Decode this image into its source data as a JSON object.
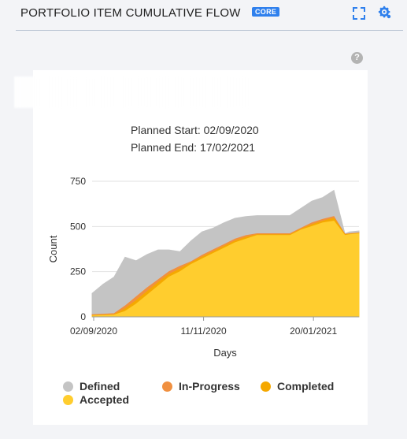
{
  "header": {
    "title": "PORTFOLIO ITEM CUMULATIVE FLOW",
    "badge": "CORE"
  },
  "subtitle": {
    "planned_start": "Planned Start: 02/09/2020",
    "planned_end": "Planned End: 17/02/2021"
  },
  "colors": {
    "accent": "#2f80ed",
    "defined": "#c4c4c4",
    "in_progress": "#f09040",
    "completed": "#f5a800",
    "accepted": "#ffcd2e"
  },
  "chart_data": {
    "type": "area",
    "xlabel": "Days",
    "ylabel": "Count",
    "ylim": [
      0,
      750
    ],
    "yticks": [
      "0",
      "250",
      "500",
      "750"
    ],
    "xtick_labels": [
      "02/09/2020",
      "11/11/2020",
      "20/01/2021"
    ],
    "xlim": [
      "2020-09-01",
      "2021-02-18"
    ],
    "x": [
      "2020-09-01",
      "2020-09-08",
      "2020-09-15",
      "2020-09-22",
      "2020-09-29",
      "2020-10-06",
      "2020-10-13",
      "2020-10-20",
      "2020-10-27",
      "2020-11-03",
      "2020-11-10",
      "2020-11-17",
      "2020-11-24",
      "2020-12-01",
      "2020-12-08",
      "2020-12-15",
      "2020-12-22",
      "2020-12-29",
      "2021-01-05",
      "2021-01-12",
      "2021-01-19",
      "2021-01-26",
      "2021-02-02",
      "2021-02-09",
      "2021-02-12",
      "2021-02-18"
    ],
    "series": [
      {
        "name": "Accepted",
        "color": "#ffcd2e",
        "values": [
          5,
          8,
          10,
          30,
          70,
          120,
          170,
          220,
          250,
          290,
          320,
          350,
          380,
          410,
          430,
          450,
          450,
          450,
          450,
          480,
          500,
          520,
          530,
          450,
          455,
          460
        ]
      },
      {
        "name": "Completed",
        "color": "#f5a800",
        "values": [
          8,
          10,
          12,
          45,
          90,
          140,
          190,
          235,
          265,
          300,
          330,
          360,
          390,
          420,
          440,
          455,
          455,
          455,
          455,
          485,
          510,
          530,
          545,
          455,
          458,
          462
        ]
      },
      {
        "name": "In-Progress",
        "color": "#f09040",
        "values": [
          12,
          15,
          18,
          60,
          110,
          160,
          205,
          250,
          280,
          305,
          340,
          370,
          400,
          430,
          450,
          460,
          460,
          460,
          460,
          490,
          520,
          540,
          555,
          458,
          460,
          465
        ]
      },
      {
        "name": "Defined",
        "color": "#c4c4c4",
        "values": [
          130,
          180,
          220,
          330,
          310,
          345,
          370,
          370,
          360,
          420,
          470,
          490,
          520,
          545,
          555,
          560,
          560,
          560,
          560,
          600,
          640,
          660,
          700,
          460,
          470,
          475
        ]
      }
    ]
  },
  "legend": {
    "items": [
      {
        "label": "Defined",
        "color": "#c4c4c4"
      },
      {
        "label": "In-Progress",
        "color": "#f09040"
      },
      {
        "label": "Completed",
        "color": "#f5a800"
      },
      {
        "label": "Accepted",
        "color": "#ffcd2e"
      }
    ]
  }
}
